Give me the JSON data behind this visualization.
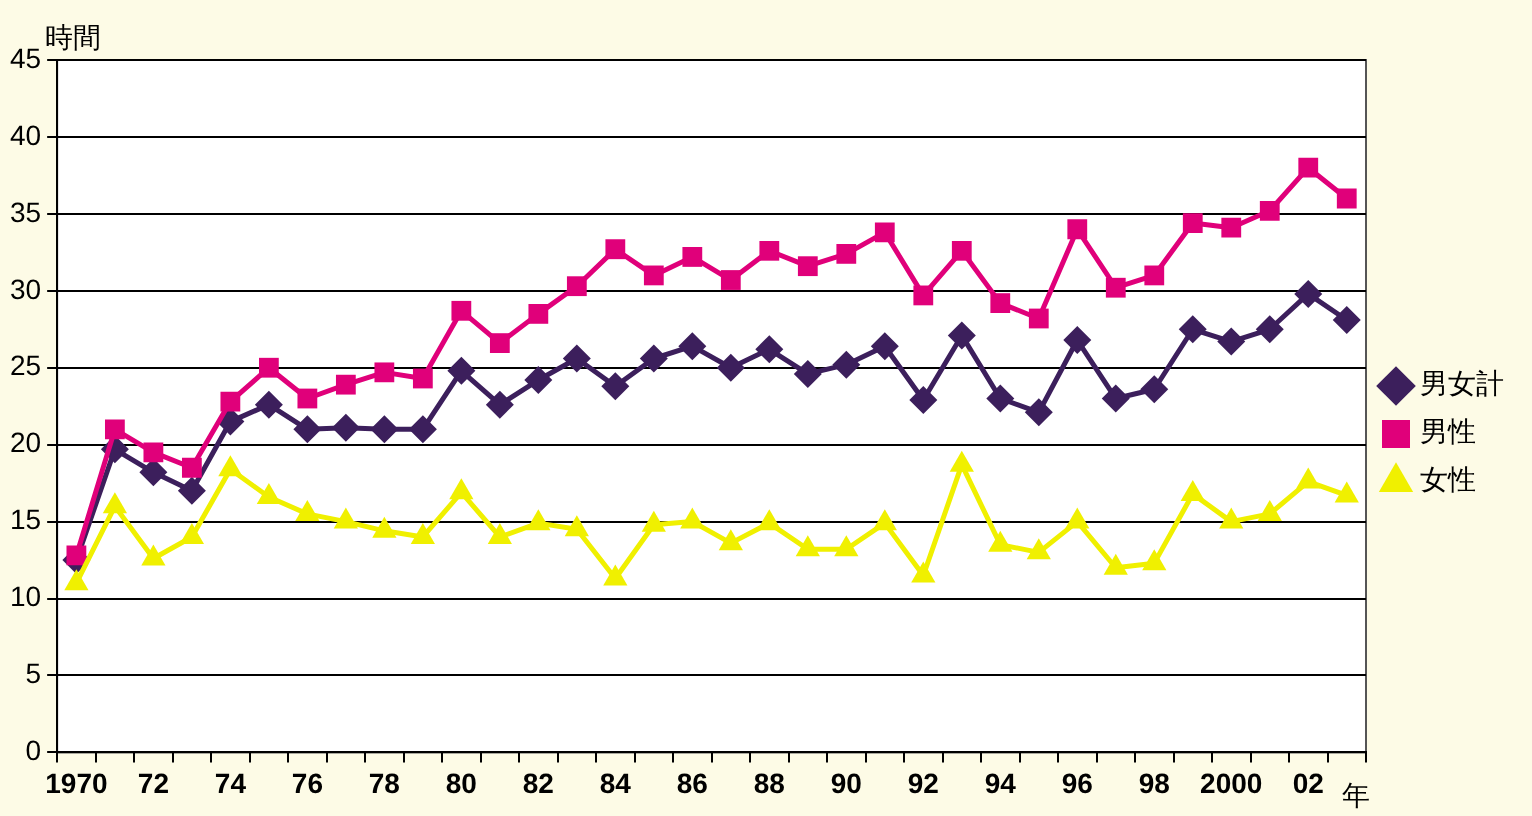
{
  "chart_data": {
    "type": "line",
    "ylabel": "時間",
    "xlabel": "年",
    "categories": [
      "1970",
      null,
      "72",
      null,
      "74",
      null,
      "76",
      null,
      "78",
      null,
      "80",
      null,
      "82",
      null,
      "84",
      null,
      "86",
      null,
      "88",
      null,
      "90",
      null,
      "92",
      null,
      "94",
      null,
      "96",
      null,
      "98",
      null,
      "2000",
      null,
      "02",
      null
    ],
    "series": [
      {
        "name": "男女計",
        "color": "#3c1f5c",
        "marker": "diamond",
        "values": [
          12.5,
          19.7,
          18.2,
          17.0,
          21.5,
          22.6,
          21.0,
          21.1,
          21.0,
          21.0,
          24.8,
          22.6,
          24.2,
          25.6,
          23.8,
          25.6,
          26.4,
          25.0,
          26.2,
          24.6,
          25.2,
          26.4,
          22.9,
          27.1,
          23.0,
          22.1,
          26.8,
          23.0,
          23.6,
          27.5,
          26.7,
          27.5,
          29.8,
          28.1
        ]
      },
      {
        "name": "男性",
        "color": "#e0007a",
        "marker": "square",
        "values": [
          12.8,
          21.0,
          19.5,
          18.5,
          22.8,
          25.0,
          23.0,
          23.9,
          24.7,
          24.3,
          28.7,
          26.6,
          28.5,
          30.3,
          32.7,
          31.0,
          32.2,
          30.7,
          32.6,
          31.6,
          32.4,
          33.8,
          29.7,
          32.6,
          29.2,
          28.2,
          34.0,
          30.2,
          31.0,
          34.4,
          34.1,
          35.2,
          38.0,
          36.0
        ]
      },
      {
        "name": "女性",
        "color": "#f0f000",
        "marker": "triangle",
        "values": [
          11.0,
          16.0,
          12.6,
          14.0,
          18.4,
          16.6,
          15.5,
          15.0,
          14.4,
          14.0,
          16.9,
          14.0,
          14.9,
          14.5,
          11.3,
          14.8,
          15.0,
          13.6,
          14.9,
          13.2,
          13.2,
          14.9,
          11.5,
          18.7,
          13.5,
          13.0,
          15.0,
          12.0,
          12.3,
          16.8,
          15.0,
          15.5,
          17.6,
          16.7
        ]
      }
    ],
    "ylim": [
      0,
      45
    ],
    "yticks": [
      0,
      5,
      10,
      15,
      20,
      25,
      30,
      35,
      40,
      45
    ],
    "grid": "y",
    "legend": "right"
  }
}
